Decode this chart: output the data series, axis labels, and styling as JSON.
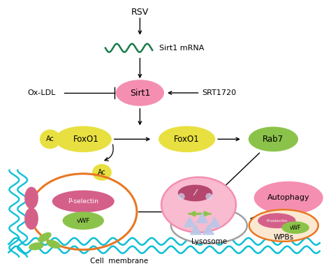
{
  "bg_color": "#ffffff",
  "rsv_text": "RSV",
  "sirt1_mrna_text": "Sirt1 mRNA",
  "sirt1_text": "Sirt1",
  "oxldl_text": "Ox-LDL",
  "srt1720_text": "SRT1720",
  "foxo1_ac_text": "FoxO1",
  "ac_text": "Ac",
  "foxo1_text": "FoxO1",
  "rab7_text": "Rab7",
  "p_selectin_text": "P-selectin",
  "vwf_text": "vWF",
  "autophagy_text": "Autophagy",
  "wpbs_text": "WPBs",
  "lysosome_text": "Lysosome",
  "cell_membrane_text": "Cell  membrane",
  "dark_green": "#1a7a4a",
  "yellow": "#e8e040",
  "light_green": "#8bc34a",
  "pink": "#f48fb1",
  "orange": "#e87722",
  "dark_pink": "#b5476e",
  "light_pink": "#f8bbd0",
  "gray_ellipse": "#a0a0a0",
  "cyan": "#00bcd4",
  "magenta_pink": "#d4608a",
  "wpb_fill": "#fce8d0"
}
